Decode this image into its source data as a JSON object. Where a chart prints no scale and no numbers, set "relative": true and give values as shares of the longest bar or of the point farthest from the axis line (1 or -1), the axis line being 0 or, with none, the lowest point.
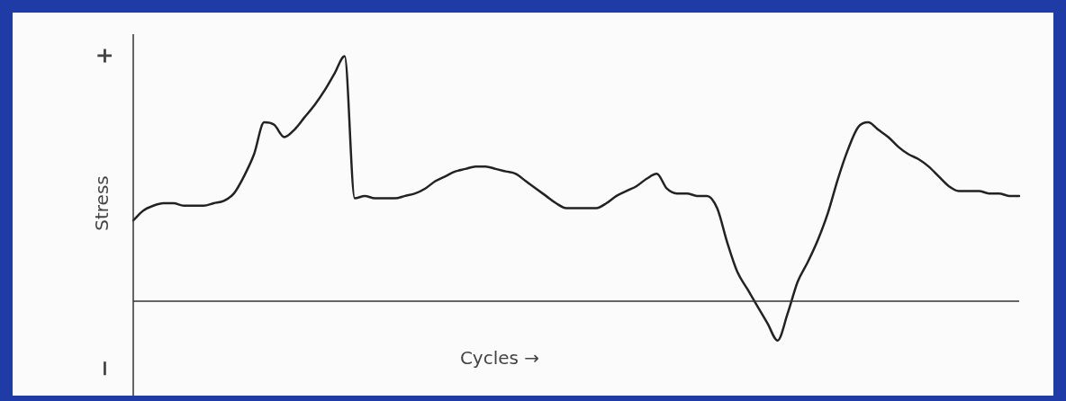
{
  "chart_data": {
    "type": "line",
    "relative": true,
    "xlabel": "Cycles →",
    "ylabel": "Stress",
    "annotations": [
      "+",
      "−"
    ],
    "marker": "none",
    "categories": [
      null,
      null,
      null,
      null,
      null,
      null,
      null,
      null,
      null,
      null,
      null,
      null,
      null,
      null,
      null,
      null,
      null,
      null,
      null,
      null,
      null,
      null,
      null,
      null,
      null,
      null,
      null,
      null,
      null,
      null,
      null,
      null,
      null,
      null,
      null,
      null,
      null,
      null,
      null,
      null,
      null,
      null,
      null,
      null,
      null,
      null,
      null,
      null,
      null,
      null,
      null,
      null,
      null,
      null,
      null,
      null,
      null,
      null,
      null,
      null,
      null,
      null,
      null,
      null,
      null,
      null,
      null,
      null,
      null,
      null,
      null,
      null,
      null,
      null,
      null,
      null,
      null,
      null,
      null,
      null,
      null,
      null,
      null,
      null,
      null,
      null,
      null,
      null,
      null
    ],
    "series": [
      {
        "color": "#222222",
        "values": [
          0.33,
          0.37,
          0.39,
          0.4,
          0.4,
          0.39,
          0.39,
          0.39,
          0.4,
          0.41,
          0.44,
          0.51,
          0.6,
          0.73,
          0.72,
          0.67,
          0.7,
          0.75,
          0.8,
          0.86,
          0.93,
          1,
          0.42,
          0.43,
          0.42,
          0.42,
          0.42,
          0.43,
          0.44,
          0.46,
          0.49,
          0.51,
          0.53,
          0.54,
          0.55,
          0.55,
          0.54,
          0.53,
          0.52,
          0.49,
          0.46,
          0.43,
          0.4,
          0.38,
          0.38,
          0.38,
          0.38,
          0.4,
          0.43,
          0.45,
          0.47,
          0.5,
          0.52,
          0.46,
          0.44,
          0.44,
          0.43,
          0.43,
          0.38,
          0.24,
          0.12,
          0.05,
          -0.02,
          -0.09,
          -0.16,
          -0.05,
          0.08,
          0.16,
          0.25,
          0.36,
          0.5,
          0.62,
          0.71,
          0.73,
          0.7,
          0.67,
          0.63,
          0.6,
          0.58,
          0.55,
          0.51,
          0.47,
          0.45,
          0.45,
          0.45,
          0.44,
          0.44,
          0.43,
          0.43
        ]
      }
    ]
  }
}
